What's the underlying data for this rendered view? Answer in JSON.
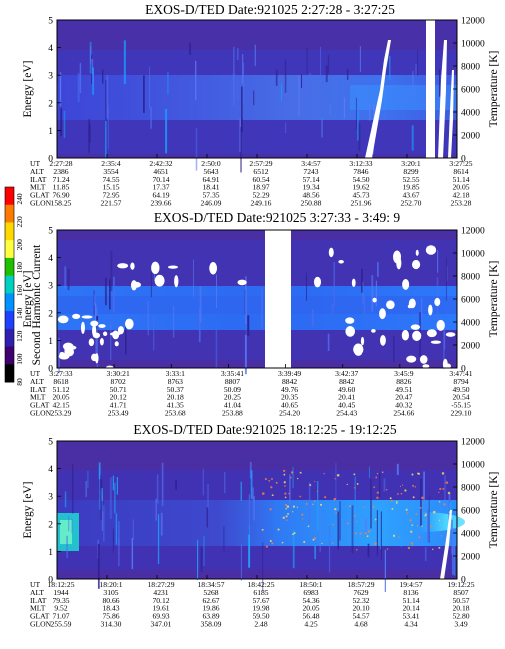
{
  "colorbar": {
    "label": "Second Harmonic Current",
    "ticks": [
      "240",
      "220",
      "200",
      "180",
      "160",
      "140",
      "120",
      "100",
      "80"
    ],
    "colors": [
      "#ff0000",
      "#ff7a00",
      "#ffd800",
      "#ffff40",
      "#20c000",
      "#00d0c0",
      "#0090ff",
      "#2040ff",
      "#3020b0",
      "#400070",
      "#000000"
    ]
  },
  "chart_data": [
    {
      "type": "heatmap",
      "title": "EXOS-D/TED   Date:921025  2:27:28 - 3:27:25",
      "ylabel": "Energy [eV]",
      "y2label": "Temperature [K]",
      "ylim": [
        0,
        5
      ],
      "yticks": [
        "0",
        "1",
        "2",
        "3",
        "4",
        "5"
      ],
      "y2lim": [
        0,
        12000
      ],
      "y2ticks": [
        "0",
        "2000",
        "4000",
        "6000",
        "8000",
        "10000",
        "12000"
      ],
      "table": {
        "labels": [
          "UT",
          "ALT",
          "ILAT",
          "MLT",
          "GLAT",
          "GLON"
        ],
        "columns": [
          [
            "2:27:28",
            "2386",
            "71.24",
            "11.85",
            "76.90",
            "158.25"
          ],
          [
            "2:35:4",
            "3554",
            "74.55",
            "15.15",
            "72.95",
            "221.57"
          ],
          [
            "2:42:32",
            "4651",
            "70.14",
            "17.37",
            "64.19",
            "239.66"
          ],
          [
            "2:50:0",
            "5643",
            "64.91",
            "18.41",
            "57.35",
            "246.09"
          ],
          [
            "2:57:29",
            "6512",
            "60.54",
            "18.97",
            "52.29",
            "249.16"
          ],
          [
            "3:4:57",
            "7243",
            "57.14",
            "19.34",
            "48.56",
            "250.88"
          ],
          [
            "3:12:33",
            "7846",
            "54.50",
            "19.62",
            "45.73",
            "251.96"
          ],
          [
            "3:20:1",
            "8299",
            "52.55",
            "19.85",
            "43.67",
            "252.70"
          ],
          [
            "3:27:25",
            "8614",
            "51.14",
            "20.05",
            "42.18",
            "253.28"
          ]
        ]
      }
    },
    {
      "type": "heatmap",
      "title": "EXOS-D/TED   Date:921025  3:27:33 - 3:49: 9",
      "ylabel": "Energy [eV]",
      "y2label": "Temperature [K]",
      "ylim": [
        0,
        5
      ],
      "yticks": [
        "0",
        "1",
        "2",
        "3",
        "4",
        "5"
      ],
      "y2lim": [
        0,
        12000
      ],
      "y2ticks": [
        "0",
        "2000",
        "4000",
        "6000",
        "8000",
        "10000",
        "12000"
      ],
      "table": {
        "labels": [
          "UT",
          "ALT",
          "ILAT",
          "MLT",
          "GLAT",
          "GLON"
        ],
        "columns": [
          [
            "3:27:33",
            "8618",
            "51.12",
            "20.05",
            "42.15",
            "253.29"
          ],
          [
            "3:30:21",
            "8702",
            "50.71",
            "20.12",
            "41.71",
            "253.49"
          ],
          [
            "3:33:1",
            "8763",
            "50.37",
            "20.18",
            "41.35",
            "253.68"
          ],
          [
            "3:35:41",
            "8807",
            "50.09",
            "20.25",
            "41.04",
            "253.88"
          ],
          [
            "3:39:49",
            "8842",
            "49.76",
            "20.35",
            "40.65",
            "254.20"
          ],
          [
            "3:42:37",
            "8842",
            "49.60",
            "20.41",
            "40.45",
            "254.43"
          ],
          [
            "3:45:9",
            "8826",
            "49.51",
            "20.47",
            "40.32",
            "254.66"
          ],
          [
            "3:47:41",
            "8794",
            "49.50",
            "20.54",
            "-55.15",
            "229.10"
          ]
        ]
      }
    },
    {
      "type": "heatmap",
      "title": "EXOS-D/TED   Date:921025  18:12:25 - 19:12:25",
      "ylabel": "Energy [eV]",
      "y2label": "Temperature [K]",
      "ylim": [
        0,
        5
      ],
      "yticks": [
        "0",
        "1",
        "2",
        "3",
        "4",
        "5"
      ],
      "y2lim": [
        0,
        12000
      ],
      "y2ticks": [
        "0",
        "2000",
        "4000",
        "6000",
        "8000",
        "10000",
        "12000"
      ],
      "table": {
        "labels": [
          "UT",
          "ALT",
          "ILAT",
          "MLT",
          "GLAT",
          "GLON"
        ],
        "columns": [
          [
            "18:12:25",
            "1944",
            "79.35",
            "9.52",
            "71.07",
            "255.59"
          ],
          [
            "18:20:1",
            "3105",
            "80.66",
            "18.43",
            "75.86",
            "314.30"
          ],
          [
            "18:27:29",
            "4231",
            "70.12",
            "19.61",
            "69.93",
            "347.01"
          ],
          [
            "18:34:57",
            "5268",
            "62.67",
            "19.86",
            "63.89",
            "358.09"
          ],
          [
            "18:42:25",
            "6185",
            "57.67",
            "19.98",
            "59.50",
            "2.48"
          ],
          [
            "18:50:1",
            "6983",
            "54.36",
            "20.05",
            "56.48",
            "4.25"
          ],
          [
            "18:57:29",
            "7629",
            "52.32",
            "20.10",
            "54.57",
            "4.68"
          ],
          [
            "19:4:57",
            "8136",
            "51.14",
            "20.14",
            "53.41",
            "4.34"
          ],
          [
            "19:12:25",
            "8507",
            "50.57",
            "20.18",
            "52.80",
            "3.49"
          ]
        ]
      }
    }
  ]
}
